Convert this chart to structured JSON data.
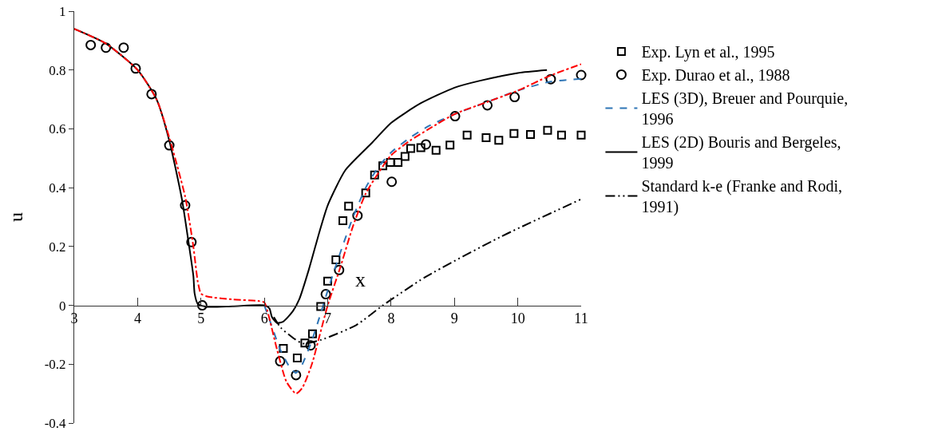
{
  "chart_data": {
    "type": "line",
    "xlabel": "x",
    "ylabel": "u",
    "xlim": [
      3,
      11
    ],
    "xticks": [
      3,
      4,
      5,
      6,
      7,
      8,
      9,
      10,
      11
    ],
    "ylim": [
      -0.4,
      1
    ],
    "yticks": [
      -0.4,
      -0.2,
      0,
      0.2,
      0.4,
      0.6,
      0.8,
      1
    ],
    "legend": "right",
    "series": [
      {
        "name": "Exp. Lyn et al., 1995",
        "type": "scatter",
        "marker": "square",
        "color": "#000000",
        "x": [
          6.3,
          6.52,
          6.64,
          6.76,
          6.89,
          7.0,
          7.13,
          7.24,
          7.33,
          7.6,
          7.74,
          7.87,
          7.99,
          8.11,
          8.22,
          8.31,
          8.47,
          8.71,
          8.93,
          9.2,
          9.5,
          9.7,
          9.94,
          10.2,
          10.47,
          10.69,
          11.0
        ],
        "values": [
          -0.146,
          -0.179,
          -0.128,
          -0.097,
          -0.004,
          0.082,
          0.155,
          0.288,
          0.337,
          0.382,
          0.443,
          0.474,
          0.486,
          0.486,
          0.506,
          0.533,
          0.536,
          0.527,
          0.545,
          0.579,
          0.57,
          0.561,
          0.584,
          0.581,
          0.595,
          0.579,
          0.579
        ]
      },
      {
        "name": "Exp. Durao et al., 1988",
        "type": "scatter",
        "marker": "circle",
        "color": "#000000",
        "x": [
          3.26,
          3.5,
          3.78,
          3.97,
          4.22,
          4.5,
          4.75,
          4.85,
          5.02,
          6.25,
          6.5,
          6.73,
          6.97,
          7.18,
          7.47,
          8.01,
          8.55,
          9.01,
          9.52,
          9.95,
          10.52,
          11.0
        ],
        "values": [
          0.885,
          0.876,
          0.876,
          0.805,
          0.718,
          0.544,
          0.34,
          0.215,
          0.0,
          -0.19,
          -0.237,
          -0.136,
          0.038,
          0.12,
          0.305,
          0.42,
          0.547,
          0.643,
          0.68,
          0.708,
          0.769,
          0.783
        ]
      },
      {
        "name": "LES (3D), Breuer and Pourquie, 1996",
        "line_style": "dashed",
        "color": "#2e75b6",
        "x": [
          6.0,
          6.1,
          6.25,
          6.4,
          6.5,
          6.6,
          6.75,
          6.9,
          7.0,
          7.2,
          7.4,
          7.6,
          7.8,
          8.0,
          8.3,
          8.6,
          9.0,
          9.5,
          10.0,
          10.5,
          11.0
        ],
        "values": [
          0.0,
          -0.06,
          -0.15,
          -0.21,
          -0.23,
          -0.2,
          -0.12,
          -0.02,
          0.05,
          0.18,
          0.3,
          0.4,
          0.47,
          0.52,
          0.57,
          0.61,
          0.65,
          0.69,
          0.73,
          0.76,
          0.77
        ]
      },
      {
        "name": "LES (2D) Bouris and Bergeles, 1999",
        "line_style": "solid",
        "color": "#000000",
        "x": [
          3.0,
          3.5,
          4.0,
          4.3,
          4.5,
          4.7,
          4.8,
          4.88,
          4.9,
          4.95,
          5.1,
          5.5,
          6.0,
          6.08,
          6.12,
          6.2,
          6.3,
          6.45,
          6.55,
          6.7,
          6.87,
          7.0,
          7.28,
          7.71,
          8.0,
          8.46,
          9.0,
          9.39,
          10.0,
          10.46
        ],
        "values": [
          0.94,
          0.89,
          0.8,
          0.7,
          0.56,
          0.36,
          0.22,
          0.1,
          0.04,
          0.005,
          -0.005,
          -0.003,
          0.0,
          -0.01,
          -0.04,
          -0.06,
          -0.055,
          -0.02,
          0.02,
          0.12,
          0.25,
          0.34,
          0.46,
          0.555,
          0.62,
          0.686,
          0.74,
          0.763,
          0.79,
          0.8
        ]
      },
      {
        "name": "Standard k-e (Franke and Rodi, 1991)",
        "line_style": "dashdotdot",
        "color": "#000000",
        "x": [
          6.15,
          6.26,
          6.45,
          6.61,
          6.9,
          7.45,
          7.87,
          8.54,
          9.72,
          11.0
        ],
        "values": [
          -0.04,
          -0.076,
          -0.11,
          -0.13,
          -0.117,
          -0.067,
          0.0,
          0.096,
          0.232,
          0.361
        ]
      },
      {
        "line_style": "dashdot",
        "color": "#ff0000",
        "x": [
          3.0,
          3.5,
          4.0,
          4.3,
          4.5,
          4.75,
          4.88,
          4.95,
          5.0,
          5.1,
          5.5,
          5.9,
          6.0,
          6.05,
          6.2,
          6.35,
          6.5,
          6.6,
          6.75,
          6.9,
          7.0,
          7.2,
          7.4,
          7.6,
          7.8,
          8.0,
          8.3,
          8.6,
          9.0,
          9.5,
          10.0,
          10.5,
          11.0
        ],
        "values": [
          0.94,
          0.89,
          0.8,
          0.7,
          0.57,
          0.37,
          0.2,
          0.08,
          0.04,
          0.03,
          0.02,
          0.015,
          0.01,
          -0.02,
          -0.15,
          -0.26,
          -0.3,
          -0.28,
          -0.2,
          -0.08,
          0.0,
          0.13,
          0.27,
          0.38,
          0.45,
          0.51,
          0.56,
          0.6,
          0.65,
          0.69,
          0.73,
          0.78,
          0.82
        ]
      }
    ]
  }
}
